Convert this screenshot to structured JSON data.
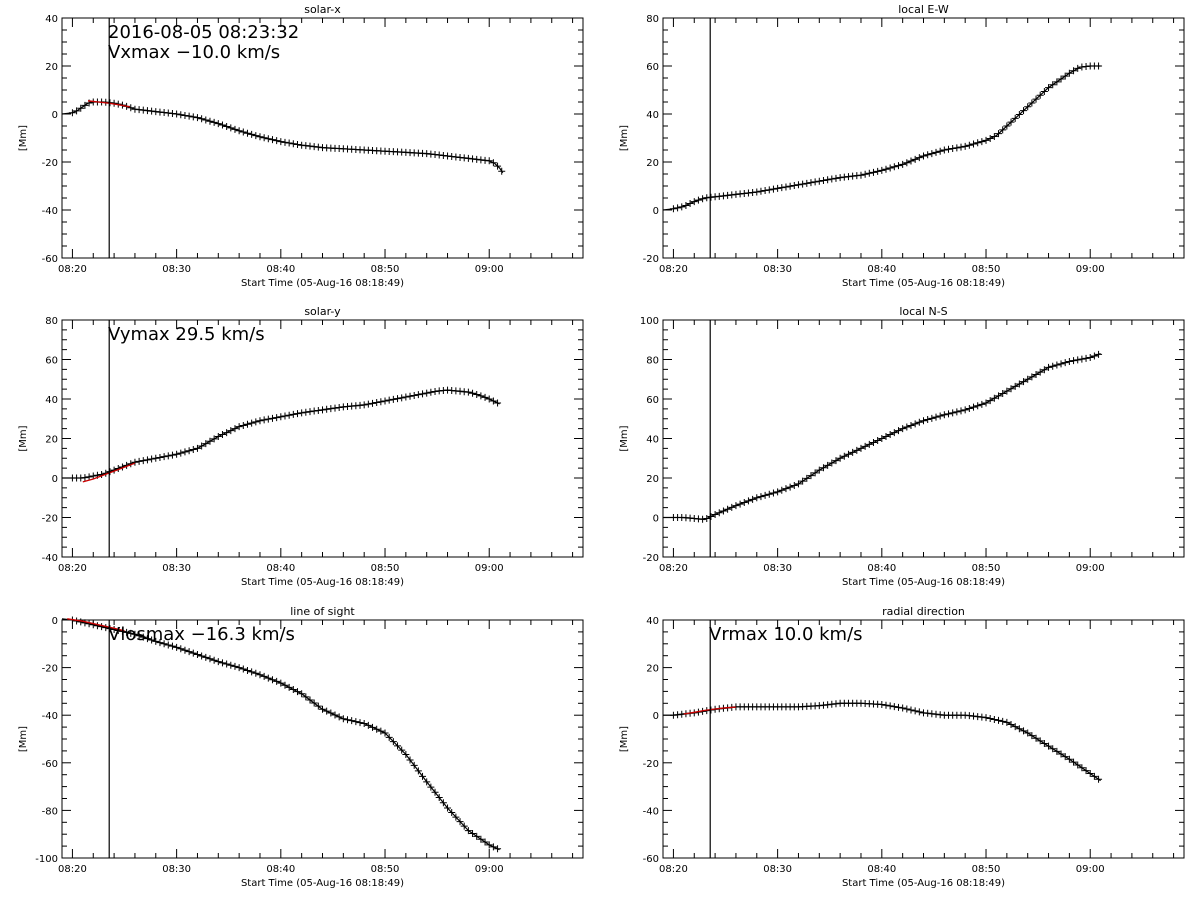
{
  "chart_data": [
    {
      "id": "solar-x",
      "type": "line",
      "title": "solar-x",
      "xlabel": "Start Time (05-Aug-16 08:18:49)",
      "ylabel": "[Mm]",
      "ylim": [
        -60,
        40
      ],
      "yticks": [
        -60,
        -40,
        -20,
        0,
        20,
        40
      ],
      "ytick_labels": [
        "-60",
        "-40",
        "-20",
        "0",
        "20",
        "40"
      ],
      "xlim": [
        19.0,
        69.0
      ],
      "xticks": [
        20,
        30,
        40,
        50,
        60
      ],
      "xtick_labels": [
        "08:20",
        "08:30",
        "08:40",
        "08:50",
        "09:00"
      ],
      "vline": 23.53,
      "annotations": [
        "2016-08-05 08:23:32",
        "Vxmax  −10.0 km/s"
      ],
      "fit": {
        "x": [
          21.5,
          22.5,
          23.5,
          24.5,
          25.5
        ],
        "y": [
          5.5,
          5.0,
          4.5,
          3.8,
          3.0
        ]
      },
      "series": [
        {
          "x": [
            19,
            20,
            20.5,
            21,
            21.5,
            22,
            22.5,
            23,
            24,
            25,
            26,
            28,
            30,
            32,
            34,
            36,
            38,
            40,
            42,
            44,
            46,
            48,
            50,
            52,
            54,
            56,
            58,
            59,
            60,
            60.5,
            61,
            61.3
          ],
          "y": [
            0,
            0.5,
            1.5,
            3,
            4.5,
            5,
            5,
            5,
            4.5,
            3.5,
            2,
            1,
            0,
            -1.5,
            -4,
            -7,
            -9.5,
            -11.5,
            -13,
            -14,
            -14.5,
            -15,
            -15.5,
            -16,
            -16.5,
            -17.5,
            -18.5,
            -19,
            -19.5,
            -20.5,
            -22.5,
            -24.5
          ]
        }
      ]
    },
    {
      "id": "local-ew",
      "type": "line",
      "title": "local E-W",
      "xlabel": "Start Time (05-Aug-16 08:18:49)",
      "ylabel": "[Mm]",
      "ylim": [
        -20,
        80
      ],
      "yticks": [
        -20,
        0,
        20,
        40,
        60,
        80
      ],
      "ytick_labels": [
        "-20",
        "0",
        "20",
        "40",
        "60",
        "80"
      ],
      "xlim": [
        19.0,
        69.0
      ],
      "xticks": [
        20,
        30,
        40,
        50,
        60
      ],
      "xtick_labels": [
        "08:20",
        "08:30",
        "08:40",
        "08:50",
        "09:00"
      ],
      "vline": 23.53,
      "annotations": [],
      "fit": null,
      "series": [
        {
          "x": [
            19,
            20,
            21,
            22,
            23,
            24,
            26,
            28,
            30,
            32,
            34,
            36,
            38,
            40,
            42,
            44,
            46,
            48,
            50,
            51,
            52,
            54,
            56,
            58,
            59,
            60,
            60.5,
            61
          ],
          "y": [
            0,
            0.5,
            1.5,
            3.5,
            5,
            5.5,
            6.5,
            7.5,
            9,
            10.5,
            12,
            13.5,
            14.5,
            16.5,
            19,
            22.5,
            25,
            26.5,
            29,
            31,
            35,
            43,
            51,
            57,
            59.5,
            60,
            60,
            60
          ]
        }
      ]
    },
    {
      "id": "solar-y",
      "type": "line",
      "title": "solar-y",
      "xlabel": "Start Time (05-Aug-16 08:18:49)",
      "ylabel": "[Mm]",
      "ylim": [
        -40,
        80
      ],
      "yticks": [
        -40,
        -20,
        0,
        20,
        40,
        60,
        80
      ],
      "ytick_labels": [
        "-40",
        "-20",
        "0",
        "20",
        "40",
        "60",
        "80"
      ],
      "xlim": [
        19.0,
        69.0
      ],
      "xticks": [
        20,
        30,
        40,
        50,
        60
      ],
      "xtick_labels": [
        "08:20",
        "08:30",
        "08:40",
        "08:50",
        "09:00"
      ],
      "vline": 23.53,
      "annotations": [
        "Vymax   29.5 km/s"
      ],
      "fit": {
        "x": [
          21,
          22,
          23,
          24,
          25,
          26
        ],
        "y": [
          -2,
          -0.5,
          1.5,
          3.5,
          5.5,
          7.5
        ]
      },
      "series": [
        {
          "x": [
            19,
            20,
            21,
            22,
            23,
            24,
            25,
            26,
            28,
            30,
            32,
            34,
            36,
            38,
            40,
            42,
            44,
            46,
            48,
            50,
            52,
            54,
            55,
            56,
            57,
            58,
            59,
            60,
            61
          ],
          "y": [
            0,
            0,
            0,
            1,
            2,
            4,
            6,
            8,
            10,
            12,
            15,
            21,
            26,
            29,
            31,
            33,
            34.5,
            36,
            37,
            39,
            41,
            43,
            44,
            44.5,
            44,
            43.5,
            42,
            40,
            37.5
          ]
        }
      ]
    },
    {
      "id": "local-ns",
      "type": "line",
      "title": "local N-S",
      "xlabel": "Start Time (05-Aug-16 08:18:49)",
      "ylabel": "[Mm]",
      "ylim": [
        -20,
        100
      ],
      "yticks": [
        -20,
        0,
        20,
        40,
        60,
        80,
        100
      ],
      "ytick_labels": [
        "-20",
        "0",
        "20",
        "40",
        "60",
        "80",
        "100"
      ],
      "xlim": [
        19.0,
        69.0
      ],
      "xticks": [
        20,
        30,
        40,
        50,
        60
      ],
      "xtick_labels": [
        "08:20",
        "08:30",
        "08:40",
        "08:50",
        "09:00"
      ],
      "vline": 23.53,
      "annotations": [],
      "fit": null,
      "series": [
        {
          "x": [
            19,
            20,
            21,
            22,
            23,
            24,
            26,
            28,
            30,
            32,
            34,
            36,
            38,
            40,
            42,
            44,
            46,
            48,
            50,
            52,
            54,
            56,
            58,
            60,
            61
          ],
          "y": [
            0,
            0,
            0,
            -0.5,
            -1,
            1.5,
            6,
            10,
            13,
            17,
            24,
            30,
            35,
            40,
            45,
            49,
            52,
            54.5,
            58,
            64,
            70,
            76,
            79,
            81,
            83
          ]
        }
      ]
    },
    {
      "id": "line-of-sight",
      "type": "line",
      "title": "line of sight",
      "xlabel": "Start Time (05-Aug-16 08:18:49)",
      "ylabel": "[Mm]",
      "ylim": [
        -100,
        0
      ],
      "yticks": [
        -100,
        -80,
        -60,
        -40,
        -20,
        0
      ],
      "ytick_labels": [
        "-100",
        "-80",
        "-60",
        "-40",
        "-20",
        "0"
      ],
      "xlim": [
        19.0,
        69.0
      ],
      "xticks": [
        20,
        30,
        40,
        50,
        60
      ],
      "xtick_labels": [
        "08:20",
        "08:30",
        "08:40",
        "08:50",
        "09:00"
      ],
      "vline": 23.53,
      "annotations": [
        "Vlosmax  −16.3 km/s"
      ],
      "fit": {
        "x": [
          19.5,
          21,
          22.5,
          24,
          25
        ],
        "y": [
          0.5,
          -0.5,
          -2,
          -3.5,
          -4.5
        ]
      },
      "series": [
        {
          "x": [
            19,
            20,
            22,
            24,
            26,
            28,
            30,
            32,
            34,
            36,
            38,
            40,
            42,
            44,
            46,
            48,
            50,
            52,
            54,
            56,
            58,
            60,
            61
          ],
          "y": [
            0.5,
            0,
            -2,
            -4,
            -6,
            -9,
            -11.5,
            -14.5,
            -17.5,
            -20,
            -23,
            -26.5,
            -31,
            -37.5,
            -41.5,
            -43.5,
            -47.5,
            -56.5,
            -68,
            -79,
            -88.5,
            -94.5,
            -96.5
          ]
        }
      ]
    },
    {
      "id": "radial-direction",
      "type": "line",
      "title": "radial direction",
      "xlabel": "Start Time (05-Aug-16 08:18:49)",
      "ylabel": "[Mm]",
      "ylim": [
        -60,
        40
      ],
      "yticks": [
        -60,
        -40,
        -20,
        0,
        20,
        40
      ],
      "ytick_labels": [
        "-60",
        "-40",
        "-20",
        "0",
        "20",
        "40"
      ],
      "xlim": [
        19.0,
        69.0
      ],
      "xticks": [
        20,
        30,
        40,
        50,
        60
      ],
      "xtick_labels": [
        "08:20",
        "08:30",
        "08:40",
        "08:50",
        "09:00"
      ],
      "vline": 23.53,
      "annotations": [
        "Vrmax   10.0 km/s"
      ],
      "fit": {
        "x": [
          21,
          22,
          23,
          24,
          25,
          26
        ],
        "y": [
          0.5,
          1.2,
          2,
          2.6,
          3.1,
          3.4
        ]
      },
      "series": [
        {
          "x": [
            19,
            20,
            21,
            22,
            24,
            26,
            28,
            30,
            32,
            34,
            36,
            38,
            40,
            42,
            44,
            46,
            48,
            50,
            52,
            54,
            56,
            58,
            60,
            61
          ],
          "y": [
            0,
            0,
            0.5,
            1,
            2.5,
            3.5,
            3.5,
            3.5,
            3.5,
            4,
            5,
            5,
            4.5,
            3,
            1,
            0,
            0,
            -1,
            -3,
            -7.5,
            -13,
            -18.5,
            -24.5,
            -27.5
          ]
        }
      ]
    }
  ]
}
